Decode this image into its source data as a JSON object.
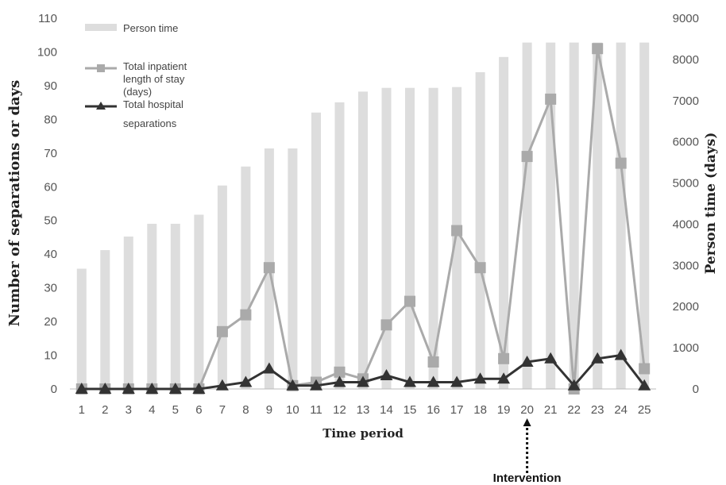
{
  "chart_data": {
    "type": "bar+line",
    "xlabel": "Time period",
    "ylabel_left": "Number of separations or days",
    "ylabel_right": "Person time (days)",
    "categories": [
      "1",
      "2",
      "3",
      "4",
      "5",
      "6",
      "7",
      "8",
      "9",
      "10",
      "11",
      "12",
      "13",
      "14",
      "15",
      "16",
      "17",
      "18",
      "19",
      "20",
      "21",
      "22",
      "23",
      "24",
      "25"
    ],
    "y_left_ticks": [
      "0",
      "10",
      "20",
      "30",
      "40",
      "50",
      "60",
      "70",
      "80",
      "90",
      "100",
      "110"
    ],
    "y_right_ticks": [
      "0",
      "1000",
      "2000",
      "3000",
      "4000",
      "5000",
      "6000",
      "7000",
      "8000",
      "9000"
    ],
    "ylim_left": [
      0,
      110
    ],
    "ylim_right": [
      0,
      9000
    ],
    "bar_series": {
      "name": "Person time",
      "axis": "right",
      "color": "#dddddd",
      "values": [
        2920,
        3370,
        3700,
        4010,
        4010,
        4230,
        4940,
        5400,
        5840,
        5840,
        6710,
        6960,
        7220,
        7310,
        7310,
        7310,
        7330,
        7690,
        8060,
        8410,
        8410,
        8410,
        8410,
        8410,
        8410
      ]
    },
    "line_series": [
      {
        "name": "Total inpatient length of stay (days)",
        "legend_lines": [
          "Total inpatient",
          "length of stay",
          "(days)"
        ],
        "axis": "left",
        "marker": "square",
        "color": "#aaaaaa",
        "values": [
          0,
          0,
          0,
          0,
          0,
          0,
          17,
          22,
          36,
          1,
          2,
          5,
          3,
          19,
          26,
          8,
          47,
          36,
          9,
          69,
          86,
          0,
          101,
          67,
          6
        ]
      },
      {
        "name": "Total hospital separations",
        "legend_lines": [
          "Total hospital",
          "separations"
        ],
        "axis": "left",
        "marker": "triangle",
        "color": "#333333",
        "values": [
          0,
          0,
          0,
          0,
          0,
          0,
          1,
          2,
          6,
          1,
          1,
          2,
          2,
          4,
          2,
          2,
          2,
          3,
          3,
          8,
          9,
          1,
          9,
          10,
          1
        ]
      }
    ],
    "legend_position": "top-left",
    "annotation": {
      "text": "Intervention",
      "at_category": "20"
    }
  }
}
